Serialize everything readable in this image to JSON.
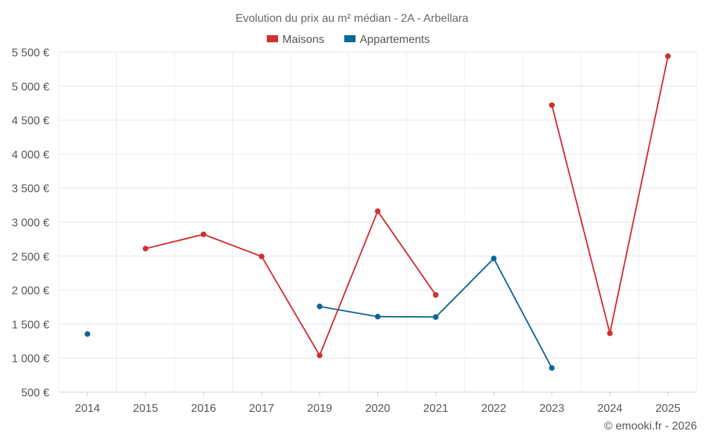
{
  "chart_data": {
    "type": "line",
    "title": "Evolution du prix au m² médian - 2A - Arbellara",
    "categories": [
      "2014",
      "2015",
      "2016",
      "2017",
      "2019",
      "2020",
      "2021",
      "2022",
      "2023",
      "2024",
      "2025"
    ],
    "series": [
      {
        "name": "Maisons",
        "color": "#d32f2f",
        "values": [
          null,
          2610,
          2820,
          2495,
          1040,
          3160,
          1930,
          null,
          4720,
          1365,
          5440
        ]
      },
      {
        "name": "Appartements",
        "color": "#0d6796",
        "values": [
          1355,
          null,
          null,
          null,
          1760,
          1610,
          1605,
          2465,
          855,
          null,
          null
        ]
      }
    ],
    "ylim": [
      500,
      5500
    ],
    "yticks": [
      500,
      1000,
      1500,
      2000,
      2500,
      3000,
      3500,
      4000,
      4500,
      5000,
      5500
    ],
    "ytick_labels": [
      "500 €",
      "1 000 €",
      "1 500 €",
      "2 000 €",
      "2 500 €",
      "3 000 €",
      "3 500 €",
      "4 000 €",
      "4 500 €",
      "5 000 €",
      "5 500 €"
    ],
    "grid": true,
    "legend_position": "top-center",
    "xlabel": "",
    "ylabel": ""
  },
  "credit": "© emooki.fr - 2026"
}
